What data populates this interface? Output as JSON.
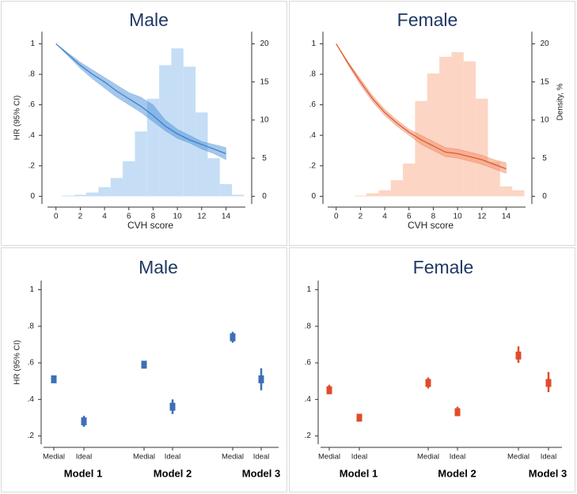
{
  "chart_data": [
    {
      "type": "line",
      "title": "Male",
      "xlabel": "CVH score",
      "ylabel": "HR (95% CI)",
      "x": [
        0,
        1,
        2,
        3,
        4,
        5,
        6,
        7,
        8,
        9,
        10,
        11,
        12,
        13,
        14
      ],
      "hr": [
        1.0,
        0.93,
        0.86,
        0.8,
        0.75,
        0.69,
        0.64,
        0.59,
        0.53,
        0.46,
        0.41,
        0.37,
        0.34,
        0.31,
        0.28
      ],
      "ci_lower": [
        1.0,
        0.92,
        0.84,
        0.77,
        0.71,
        0.65,
        0.6,
        0.55,
        0.49,
        0.43,
        0.38,
        0.35,
        0.31,
        0.28,
        0.24
      ],
      "ci_upper": [
        1.0,
        0.94,
        0.88,
        0.83,
        0.78,
        0.73,
        0.68,
        0.65,
        0.6,
        0.5,
        0.44,
        0.4,
        0.36,
        0.34,
        0.32
      ],
      "color": "#3f7fc7",
      "band_color": "#4a90d9",
      "bins": [
        0.5,
        1.5,
        2.5,
        3.5,
        4.5,
        5.5,
        6.5,
        7.5,
        8.5,
        9.5,
        10.5,
        11.5,
        12.5,
        13.5,
        14.5,
        15.5
      ],
      "density": [
        0.1,
        0.2,
        0.5,
        1.2,
        2.4,
        4.6,
        8.5,
        12.8,
        17.2,
        19.4,
        17,
        11,
        5,
        1.6,
        0.2
      ],
      "hist_color": "#c5def5",
      "xlim": [
        -0.7,
        15.6
      ],
      "xticks": [
        0,
        2,
        4,
        6,
        8,
        10,
        12,
        14
      ],
      "ylim": [
        -0.05,
        1.08
      ],
      "yticks": [
        0,
        {
          "value": 0.2,
          "label": ".2"
        },
        {
          "value": 0.4,
          "label": ".4"
        },
        {
          "value": 0.6,
          "label": ".6"
        },
        {
          "value": 0.8,
          "label": ".8"
        },
        1
      ],
      "y2lim": [
        -1,
        21.6
      ],
      "y2ticks": [
        0,
        5,
        10,
        15,
        20
      ]
    },
    {
      "type": "line",
      "title": "Female",
      "xlabel": "CVH score",
      "y2label": "Density, %",
      "x": [
        0,
        1,
        2,
        3,
        4,
        5,
        6,
        7,
        8,
        9,
        10,
        11,
        12,
        13,
        14
      ],
      "hr": [
        1.0,
        0.87,
        0.75,
        0.64,
        0.55,
        0.48,
        0.42,
        0.37,
        0.33,
        0.29,
        0.28,
        0.26,
        0.24,
        0.21,
        0.18
      ],
      "ci_lower": [
        1.0,
        0.86,
        0.73,
        0.62,
        0.53,
        0.46,
        0.4,
        0.34,
        0.3,
        0.26,
        0.25,
        0.23,
        0.21,
        0.18,
        0.15
      ],
      "ci_upper": [
        1.0,
        0.88,
        0.77,
        0.66,
        0.57,
        0.5,
        0.44,
        0.4,
        0.36,
        0.32,
        0.31,
        0.29,
        0.27,
        0.24,
        0.22
      ],
      "color": "#e05a33",
      "band_color": "#f08a60",
      "bins": [
        1.5,
        2.5,
        3.5,
        4.5,
        5.5,
        6.5,
        7.5,
        8.5,
        9.5,
        10.5,
        11.5,
        12.5,
        13.5,
        14.5,
        15.5
      ],
      "density": [
        0.1,
        0.4,
        0.8,
        2.1,
        4.3,
        12.5,
        16.1,
        18.3,
        18.9,
        17.7,
        12.8,
        4.5,
        1.3,
        0.8
      ],
      "hist_color": "#fcd5c4",
      "xlim": [
        -0.7,
        15.6
      ],
      "xticks": [
        0,
        2,
        4,
        6,
        8,
        10,
        12,
        14
      ],
      "ylim": [
        -0.05,
        1.08
      ],
      "yticks": [
        0,
        {
          "value": 0.2,
          "label": ".2"
        },
        {
          "value": 0.4,
          "label": ".4"
        },
        {
          "value": 0.6,
          "label": ".6"
        },
        {
          "value": 0.8,
          "label": ".8"
        },
        1
      ],
      "y2lim": [
        -1,
        21.6
      ],
      "y2ticks": [
        0,
        5,
        10,
        15,
        20
      ]
    },
    {
      "type": "errorbar",
      "title": "Male",
      "ylabel": "HR (95% CI)",
      "categories": [
        "Medial",
        "Ideal",
        "Medial",
        "Ideal",
        "Medial",
        "Ideal"
      ],
      "groups": [
        "Model 1",
        "Model 2",
        "Model 3"
      ],
      "values": [
        0.51,
        0.28,
        0.59,
        0.36,
        0.74,
        0.51
      ],
      "ci_lower": [
        0.49,
        0.25,
        0.57,
        0.32,
        0.71,
        0.45
      ],
      "ci_upper": [
        0.53,
        0.31,
        0.61,
        0.4,
        0.77,
        0.57
      ],
      "color": "#3d6fb6",
      "ylim": [
        0.155,
        1.05
      ],
      "yticks": [
        {
          "value": 0.2,
          "label": ".2"
        },
        {
          "value": 0.4,
          "label": ".4"
        },
        {
          "value": 0.6,
          "label": ".6"
        },
        {
          "value": 0.8,
          "label": ".8"
        },
        1
      ]
    },
    {
      "type": "errorbar",
      "title": "Female",
      "categories": [
        "Medial",
        "Ideal",
        "Medial",
        "Ideal",
        "Medial",
        "Ideal"
      ],
      "groups": [
        "Model 1",
        "Model 2",
        "Model 3"
      ],
      "values": [
        0.45,
        0.3,
        0.49,
        0.33,
        0.64,
        0.49
      ],
      "ci_lower": [
        0.43,
        0.28,
        0.46,
        0.31,
        0.6,
        0.44
      ],
      "ci_upper": [
        0.48,
        0.32,
        0.52,
        0.36,
        0.69,
        0.55
      ],
      "color": "#e04b2b",
      "ylim": [
        0.155,
        1.05
      ],
      "yticks": [
        {
          "value": 0.2,
          "label": ".2"
        },
        {
          "value": 0.4,
          "label": ".4"
        },
        {
          "value": 0.6,
          "label": ".6"
        },
        {
          "value": 0.8,
          "label": ".8"
        },
        1
      ]
    }
  ]
}
